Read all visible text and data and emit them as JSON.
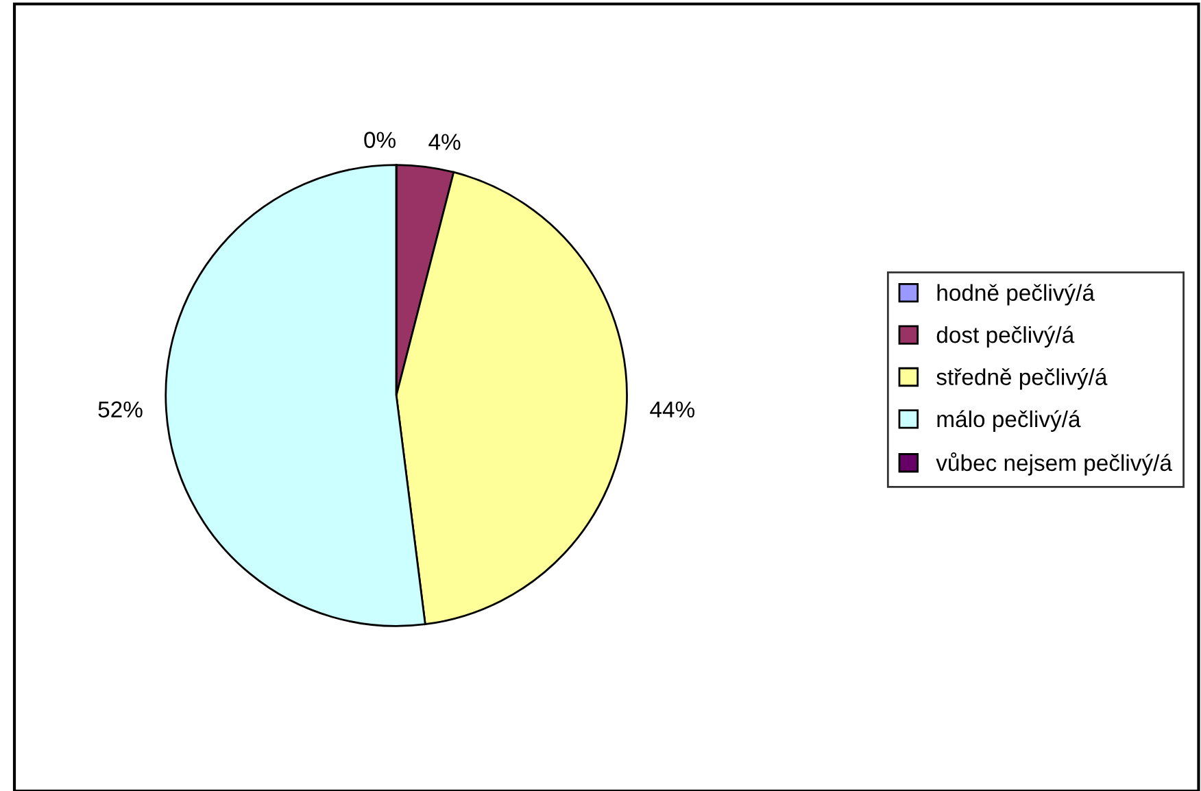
{
  "chart_data": {
    "type": "pie",
    "categories": [
      "hodně pečlivý/á",
      "dost pečlivý/á",
      "středně pečlivý/á",
      "málo pečlivý/á",
      "vůbec nejsem pečlivý/á"
    ],
    "values": [
      0,
      4,
      44,
      52,
      0
    ],
    "value_labels": [
      "0%",
      "4%",
      "44%",
      "52%",
      null
    ],
    "colors": [
      "#9999ff",
      "#993366",
      "#ffff99",
      "#ccffff",
      "#660066"
    ],
    "legend": "right"
  }
}
